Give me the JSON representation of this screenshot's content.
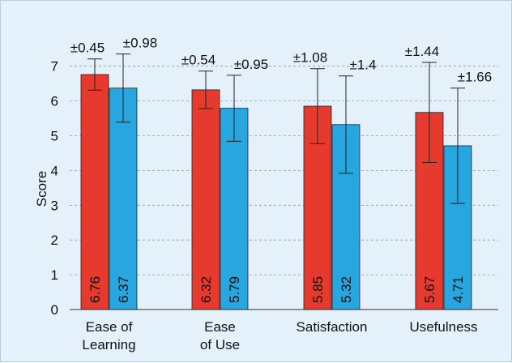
{
  "chart_data": {
    "type": "bar",
    "ylabel": "Score",
    "xlabel": "",
    "ylim": [
      0,
      7.3
    ],
    "yticks": [
      0,
      1,
      2,
      3,
      4,
      5,
      6,
      7
    ],
    "grid": "dashed horizontal",
    "categories": [
      [
        "Ease of",
        "Learning"
      ],
      [
        "Ease",
        "of Use"
      ],
      [
        "Satisfaction"
      ],
      [
        "Usefulness"
      ]
    ],
    "series": [
      {
        "color": "#e63a2e",
        "values": [
          6.76,
          6.32,
          5.85,
          5.67
        ],
        "errors": [
          0.45,
          0.54,
          1.08,
          1.44
        ],
        "error_labels": [
          "±0.45",
          "±0.54",
          "±1.08",
          "±1.44"
        ],
        "value_labels": [
          "6.76",
          "6.32",
          "5.85",
          "5.67"
        ]
      },
      {
        "color": "#27a6df",
        "values": [
          6.37,
          5.79,
          5.32,
          4.71
        ],
        "errors": [
          0.98,
          0.95,
          1.4,
          1.66
        ],
        "error_labels": [
          "±0.98",
          "±0.95",
          "±1.4",
          "±1.66"
        ],
        "value_labels": [
          "6.37",
          "5.79",
          "5.32",
          "4.71"
        ]
      }
    ]
  }
}
